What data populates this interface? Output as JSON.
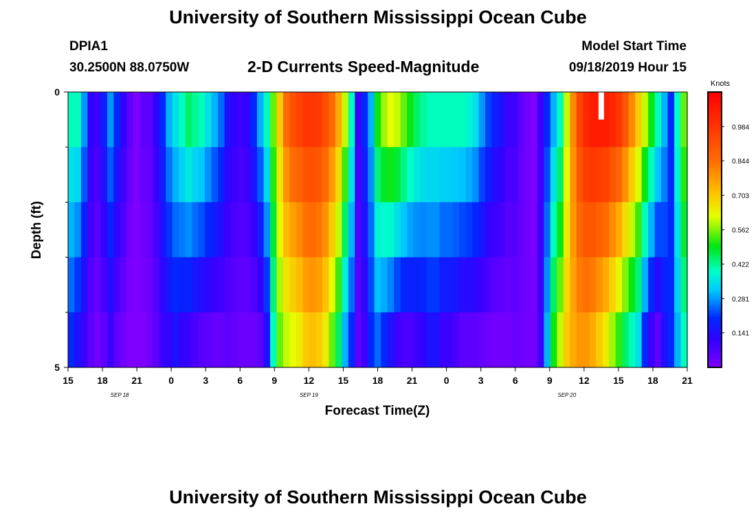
{
  "header": {
    "title": "University of Southern Mississippi Ocean Cube",
    "station": "DPIA1",
    "coords": "30.2500N 88.0750W",
    "subtitle": "2-D Currents Speed-Magnitude",
    "model_start_label": "Model Start Time",
    "model_start_value": "09/18/2019 Hour 15"
  },
  "footer": {
    "title": "University of Southern Mississippi Ocean Cube"
  },
  "chart_data": {
    "type": "heatmap",
    "title": "2-D Currents Speed-Magnitude",
    "xlabel": "Forecast Time(Z)",
    "ylabel": "Depth (ft)",
    "x_hours_range": [
      0,
      54
    ],
    "x_ticks": [
      {
        "h": 0,
        "label": "15"
      },
      {
        "h": 3,
        "label": "18"
      },
      {
        "h": 6,
        "label": "21"
      },
      {
        "h": 9,
        "label": "0"
      },
      {
        "h": 12,
        "label": "3"
      },
      {
        "h": 15,
        "label": "6"
      },
      {
        "h": 18,
        "label": "9"
      },
      {
        "h": 21,
        "label": "12"
      },
      {
        "h": 24,
        "label": "15"
      },
      {
        "h": 27,
        "label": "18"
      },
      {
        "h": 30,
        "label": "21"
      },
      {
        "h": 33,
        "label": "0"
      },
      {
        "h": 36,
        "label": "3"
      },
      {
        "h": 39,
        "label": "6"
      },
      {
        "h": 42,
        "label": "9"
      },
      {
        "h": 45,
        "label": "12"
      },
      {
        "h": 48,
        "label": "15"
      },
      {
        "h": 51,
        "label": "18"
      },
      {
        "h": 54,
        "label": "21"
      }
    ],
    "date_labels": [
      {
        "h": 4.5,
        "label": "SEP 18"
      },
      {
        "h": 21,
        "label": "SEP 19"
      },
      {
        "h": 43.5,
        "label": "SEP 20"
      }
    ],
    "y_range": [
      0,
      5
    ],
    "y_tick_labels": [
      {
        "depth": 0,
        "label": "0"
      },
      {
        "depth": 5,
        "label": "5"
      }
    ],
    "y_minor_ticks": [
      1,
      2,
      3,
      4
    ],
    "depth_layers": 5,
    "colorbar": {
      "units": "Knots",
      "range": [
        0.0,
        1.125
      ],
      "ticks": [
        "0.141",
        "0.281",
        "0.422",
        "0.562",
        "0.703",
        "0.844",
        "0.984"
      ],
      "tick_values": [
        0.141,
        0.281,
        0.422,
        0.562,
        0.703,
        0.844,
        0.984
      ]
    },
    "surface_profile_knots": [
      0.4,
      0.4,
      0.28,
      0.12,
      0.1,
      0.18,
      0.28,
      0.2,
      0.12,
      0.05,
      0.0,
      0.05,
      0.05,
      0.12,
      0.2,
      0.3,
      0.35,
      0.4,
      0.45,
      0.42,
      0.4,
      0.35,
      0.3,
      0.25,
      0.15,
      0.12,
      0.1,
      0.12,
      0.2,
      0.3,
      0.4,
      0.55,
      0.7,
      0.85,
      0.92,
      0.95,
      0.98,
      0.98,
      0.97,
      0.92,
      0.85,
      0.75,
      0.6,
      0.4,
      0.1,
      0.2,
      0.3,
      0.5,
      0.58,
      0.62,
      0.6,
      0.55,
      0.5,
      0.45,
      0.42,
      0.4,
      0.4,
      0.4,
      0.4,
      0.4,
      0.4,
      0.38,
      0.35,
      0.28,
      0.22,
      0.18,
      0.15,
      0.1,
      0.1,
      0.05,
      0.02,
      0.0,
      0.1,
      0.2,
      0.3,
      0.4,
      0.6,
      0.8,
      0.95,
      1.02,
      1.05,
      1.05,
      1.05,
      1.02,
      0.98,
      0.9,
      0.8,
      0.7,
      0.6,
      0.5,
      0.4,
      0.3,
      0.2,
      0.4,
      0.55
    ],
    "bottom_profile_knots": [
      0.2,
      0.15,
      0.1,
      0.05,
      0.02,
      0.05,
      0.1,
      0.05,
      0.02,
      0.0,
      0.0,
      0.0,
      0.02,
      0.05,
      0.1,
      0.12,
      0.15,
      0.12,
      0.1,
      0.08,
      0.06,
      0.05,
      0.04,
      0.04,
      0.05,
      0.04,
      0.03,
      0.03,
      0.03,
      0.05,
      0.15,
      0.4,
      0.55,
      0.6,
      0.62,
      0.65,
      0.7,
      0.72,
      0.7,
      0.65,
      0.55,
      0.45,
      0.3,
      0.2,
      0.05,
      0.1,
      0.2,
      0.25,
      0.2,
      0.15,
      0.1,
      0.08,
      0.08,
      0.1,
      0.12,
      0.15,
      0.15,
      0.1,
      0.1,
      0.08,
      0.05,
      0.05,
      0.05,
      0.04,
      0.03,
      0.02,
      0.02,
      0.02,
      0.03,
      0.03,
      0.02,
      0.02,
      0.1,
      0.3,
      0.5,
      0.6,
      0.7,
      0.75,
      0.78,
      0.78,
      0.75,
      0.7,
      0.65,
      0.58,
      0.52,
      0.45,
      0.4,
      0.35,
      0.2,
      0.1,
      0.05,
      0.15,
      0.2,
      0.3,
      0.4
    ],
    "small_white_patch": {
      "hour": 46.5,
      "depth_range": [
        0,
        0.5
      ]
    }
  }
}
